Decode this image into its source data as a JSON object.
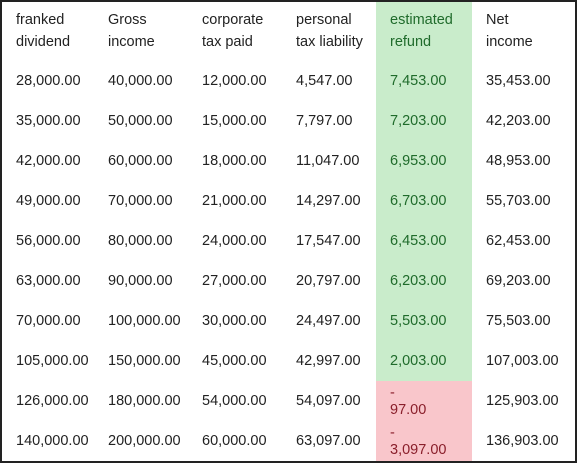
{
  "table": {
    "headers": [
      [
        "franked",
        "dividend"
      ],
      [
        "Gross",
        "income"
      ],
      [
        "corporate",
        "tax paid"
      ],
      [
        "personal",
        "tax liability"
      ],
      [
        "estimated",
        "refund"
      ],
      [
        "Net",
        "income"
      ]
    ],
    "rows": [
      [
        "28,000.00",
        "40,000.00",
        "12,000.00",
        "4,547.00",
        "7,453.00",
        "35,453.00"
      ],
      [
        "35,000.00",
        "50,000.00",
        "15,000.00",
        "7,797.00",
        "7,203.00",
        "42,203.00"
      ],
      [
        "42,000.00",
        "60,000.00",
        "18,000.00",
        "11,047.00",
        "6,953.00",
        "48,953.00"
      ],
      [
        "49,000.00",
        "70,000.00",
        "21,000.00",
        "14,297.00",
        "6,703.00",
        "55,703.00"
      ],
      [
        "56,000.00",
        "80,000.00",
        "24,000.00",
        "17,547.00",
        "6,453.00",
        "62,453.00"
      ],
      [
        "63,000.00",
        "90,000.00",
        "27,000.00",
        "20,797.00",
        "6,203.00",
        "69,203.00"
      ],
      [
        "70,000.00",
        "100,000.00",
        "30,000.00",
        "24,497.00",
        "5,503.00",
        "75,503.00"
      ],
      [
        "105,000.00",
        "150,000.00",
        "45,000.00",
        "42,997.00",
        "2,003.00",
        "107,003.00"
      ],
      [
        "126,000.00",
        "180,000.00",
        "54,000.00",
        "54,097.00",
        "-97.00",
        "125,903.00"
      ],
      [
        "140,000.00",
        "200,000.00",
        "60,000.00",
        "63,097.00",
        "-3,097.00",
        "136,903.00"
      ]
    ],
    "negative_refund_sign": "-",
    "negative_refunds": [
      "97.00",
      "3,097.00"
    ]
  },
  "colors": {
    "refund_positive_bg": "#c9eccb",
    "refund_negative_bg": "#f9c6cb",
    "border": "#222222"
  }
}
